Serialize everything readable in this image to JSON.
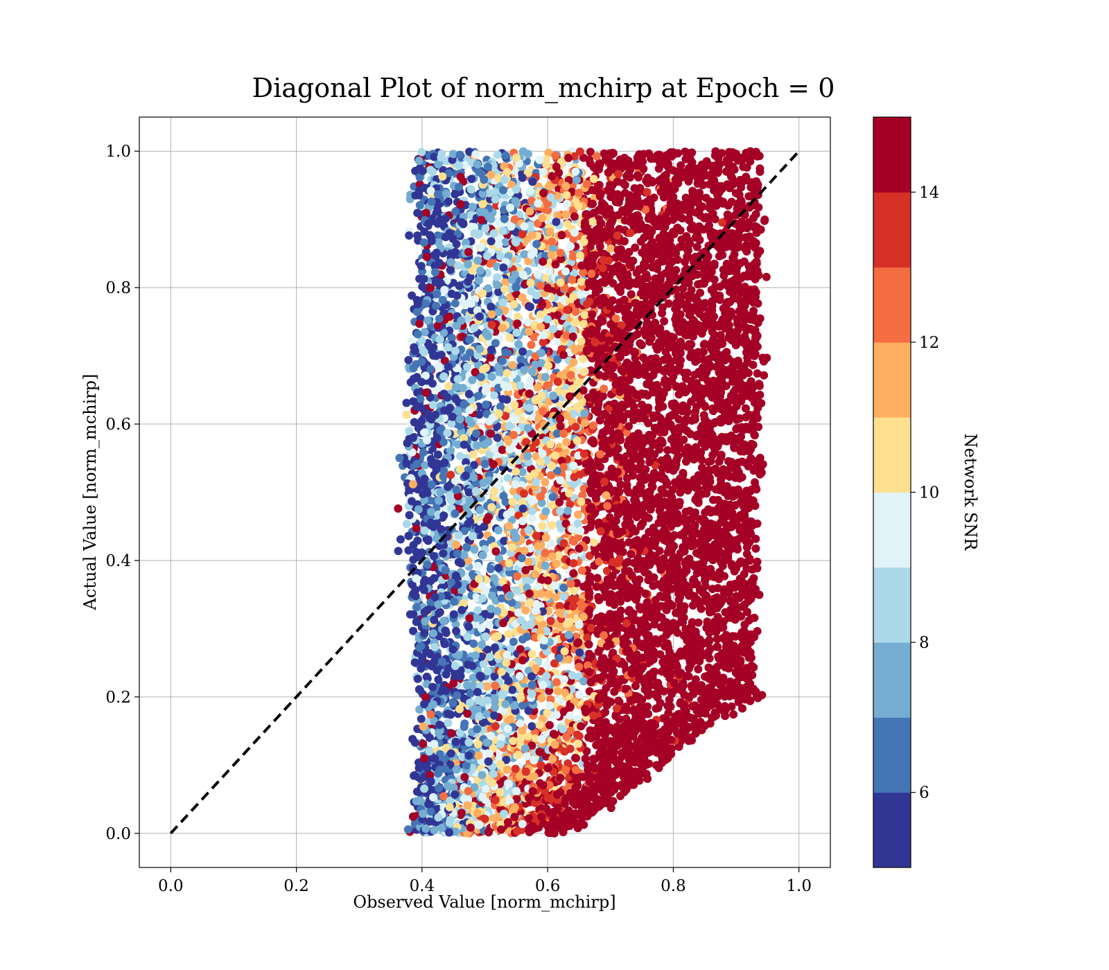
{
  "chart_data": {
    "type": "scatter",
    "title": "Diagonal Plot of norm_mchirp at Epoch = 0",
    "xlabel": "Observed Value [norm_mchirp]",
    "ylabel": "Actual Value [norm_mchirp]",
    "xlim": [
      -0.05,
      1.05
    ],
    "ylim": [
      -0.05,
      1.05
    ],
    "xticks": [
      0.0,
      0.2,
      0.4,
      0.6,
      0.8,
      1.0
    ],
    "xtick_labels": [
      "0.0",
      "0.2",
      "0.4",
      "0.6",
      "0.8",
      "1.0"
    ],
    "yticks": [
      0.0,
      0.2,
      0.4,
      0.6,
      0.8,
      1.0
    ],
    "ytick_labels": [
      "0.0",
      "0.2",
      "0.4",
      "0.6",
      "0.8",
      "1.0"
    ],
    "grid": true,
    "reference_line": {
      "x": [
        0.0,
        1.0
      ],
      "y": [
        0.0,
        1.0
      ],
      "style": "dashed",
      "color": "#000000"
    },
    "point_cloud": {
      "description_of_extent": "points span observed ~0.36 to ~0.96, actual 0.0 to 1.0; left edge near 0.38-0.40, right edge ~0.94 at top narrowing toward ~0.63 at bottom",
      "observed_range": [
        0.36,
        0.96
      ],
      "actual_range": [
        0.0,
        1.0
      ],
      "colored_by": "Network SNR"
    },
    "colorbar": {
      "label": "Network SNR",
      "range": [
        5,
        15
      ],
      "ticks": [
        6,
        8,
        10,
        12,
        14
      ],
      "tick_labels": [
        "6",
        "8",
        "10",
        "12",
        "14"
      ],
      "colors": [
        "#313695",
        "#4575b4",
        "#74add1",
        "#abd9e9",
        "#e0f3f8",
        "#fee090",
        "#fdae61",
        "#f46d43",
        "#d73027",
        "#a50026"
      ]
    }
  }
}
